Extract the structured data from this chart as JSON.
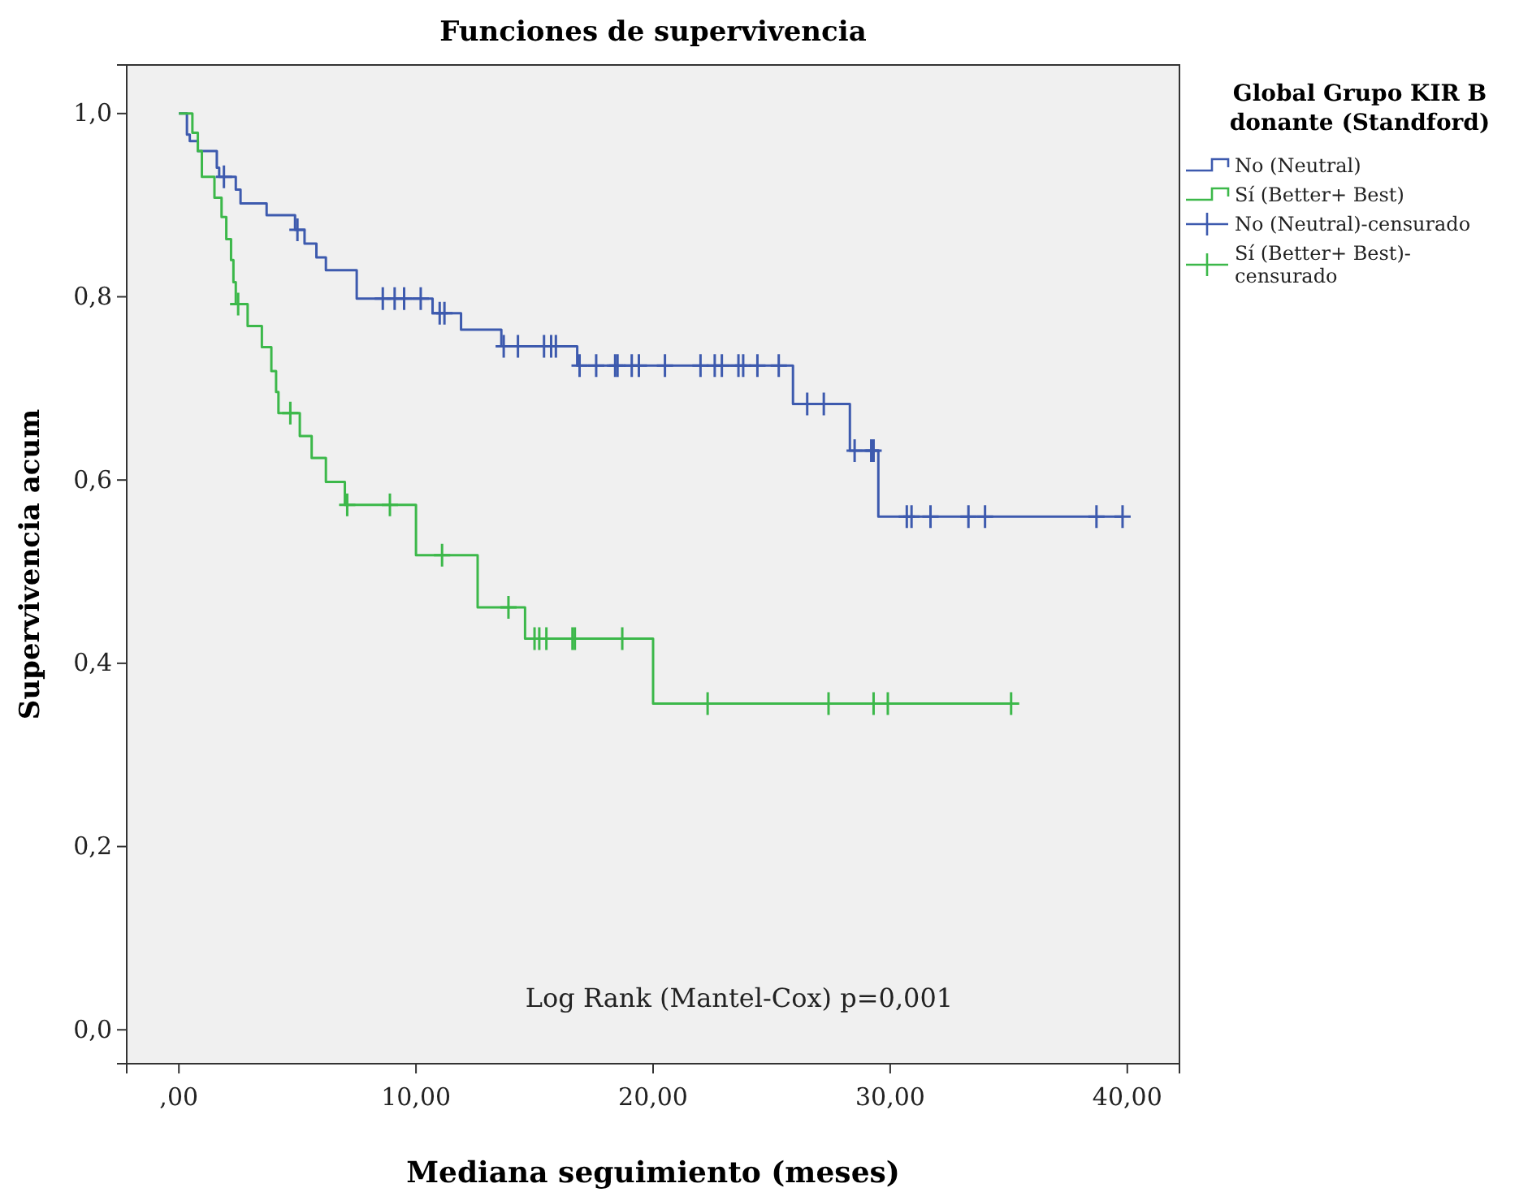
{
  "chart_data": {
    "type": "step",
    "title": "Funciones de supervivencia",
    "xlabel": "Mediana seguimiento (meses)",
    "ylabel": "Supervivencia acum",
    "legend_title": "Global Grupo KIR B donante (Standford)",
    "legend": "right",
    "grid": false,
    "xlim": [
      -2.2,
      42.2
    ],
    "xticks": [
      {
        "value": 0,
        "label": ",00"
      },
      {
        "value": 10,
        "label": "10,00"
      },
      {
        "value": 20,
        "label": "20,00"
      },
      {
        "value": 30,
        "label": "30,00"
      },
      {
        "value": 40,
        "label": "40,00"
      }
    ],
    "ylim": [
      -0.037,
      1.053
    ],
    "yticks": [
      {
        "value": 0,
        "label": "0,0"
      },
      {
        "value": 0.2,
        "label": "0,2"
      },
      {
        "value": 0.4,
        "label": "0,4"
      },
      {
        "value": 0.6,
        "label": "0,6"
      },
      {
        "value": 0.8,
        "label": "0,8"
      },
      {
        "value": 1,
        "label": "1,0"
      }
    ],
    "annotations": [
      "Log Rank (Mantel-Cox) p=0,001"
    ],
    "series": [
      {
        "name": "No (Neutral)",
        "color": "#3d5aae",
        "x": [
          0,
          0.34,
          0.46,
          0.8,
          1.6,
          1.7,
          2.4,
          2.6,
          3.7,
          4.9,
          5.3,
          5.8,
          6.2,
          7.5,
          10.7,
          11.9,
          13.6,
          16.8,
          25.9,
          28.3,
          29.5,
          39.8
        ],
        "values": [
          1,
          0.977,
          0.97,
          0.959,
          0.941,
          0.931,
          0.917,
          0.902,
          0.889,
          0.873,
          0.858,
          0.843,
          0.829,
          0.798,
          0.782,
          0.764,
          0.746,
          0.725,
          0.683,
          0.632,
          0.56,
          0.56
        ]
      },
      {
        "name": "Sí (Better+ Best)",
        "color": "#3cb84a",
        "x": [
          0,
          0.57,
          0.8,
          0.97,
          1.5,
          1.8,
          2.0,
          2.2,
          2.3,
          2.4,
          2.9,
          3.5,
          3.9,
          4.1,
          4.2,
          5.1,
          5.6,
          6.2,
          7.0,
          10.0,
          12.6,
          14.6,
          20.0,
          35.1
        ],
        "values": [
          1,
          0.979,
          0.959,
          0.931,
          0.908,
          0.887,
          0.863,
          0.84,
          0.816,
          0.792,
          0.768,
          0.745,
          0.719,
          0.696,
          0.673,
          0.648,
          0.624,
          0.598,
          0.573,
          0.518,
          0.461,
          0.427,
          0.356,
          0.356
        ]
      },
      {
        "name": "No (Neutral)-censurado",
        "type": "scatter",
        "marker": "cross",
        "color": "#3d5aae",
        "x": [
          1.9,
          5.0,
          8.6,
          9.1,
          9.5,
          10.2,
          11.0,
          11.2,
          13.7,
          14.3,
          15.4,
          15.7,
          15.9,
          16.9,
          17.6,
          18.4,
          18.5,
          19.1,
          19.4,
          20.5,
          22.0,
          22.6,
          22.9,
          23.6,
          23.8,
          24.4,
          25.3,
          26.5,
          27.2,
          28.5,
          29.2,
          29.3,
          30.7,
          30.9,
          31.7,
          33.3,
          34.0,
          38.7,
          39.8
        ],
        "values": [
          0.931,
          0.873,
          0.798,
          0.798,
          0.798,
          0.798,
          0.782,
          0.782,
          0.746,
          0.746,
          0.746,
          0.746,
          0.746,
          0.725,
          0.725,
          0.725,
          0.725,
          0.725,
          0.725,
          0.725,
          0.725,
          0.725,
          0.725,
          0.725,
          0.725,
          0.725,
          0.725,
          0.683,
          0.683,
          0.632,
          0.632,
          0.632,
          0.56,
          0.56,
          0.56,
          0.56,
          0.56,
          0.56,
          0.56
        ]
      },
      {
        "name": "Sí (Better+ Best)-censurado",
        "type": "scatter",
        "marker": "cross",
        "color": "#3cb84a",
        "x": [
          2.5,
          4.7,
          7.1,
          8.9,
          11.1,
          13.9,
          15.0,
          15.2,
          15.5,
          16.6,
          16.7,
          18.7,
          22.3,
          27.4,
          29.3,
          29.9,
          35.1
        ],
        "values": [
          0.792,
          0.673,
          0.573,
          0.573,
          0.518,
          0.461,
          0.427,
          0.427,
          0.427,
          0.427,
          0.427,
          0.427,
          0.356,
          0.356,
          0.356,
          0.356,
          0.356
        ]
      }
    ]
  }
}
